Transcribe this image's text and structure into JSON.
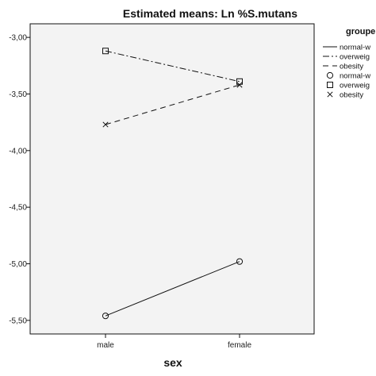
{
  "chart_data": {
    "type": "line",
    "title": "Estimated means: Ln %S.mutans",
    "xlabel": "sex",
    "ylabel": "",
    "categories": [
      "male",
      "female"
    ],
    "ylim": [
      -5.62,
      -2.88
    ],
    "y_ticks": [
      -3.0,
      -3.5,
      -4.0,
      -4.5,
      -5.0,
      -5.5
    ],
    "y_tick_labels": [
      "-3,00",
      "-3,50",
      "-4,00",
      "-4,50",
      "-5,00",
      "-5,50"
    ],
    "grid": false,
    "series": [
      {
        "name": "normal-w",
        "values": [
          -5.46,
          -4.98
        ],
        "line_style": "solid",
        "marker": "circle"
      },
      {
        "name": "overweig",
        "values": [
          -3.12,
          -3.39
        ],
        "line_style": "dashdot",
        "marker": "square"
      },
      {
        "name": "obesity",
        "values": [
          -3.77,
          -3.42
        ],
        "line_style": "dashed",
        "marker": "x"
      }
    ],
    "legend": {
      "title": "groupe",
      "position": "right",
      "line_entries": [
        "normal-w",
        "overweig",
        "obesity"
      ],
      "marker_entries": [
        "normal-w",
        "overweig",
        "obesity"
      ]
    }
  }
}
